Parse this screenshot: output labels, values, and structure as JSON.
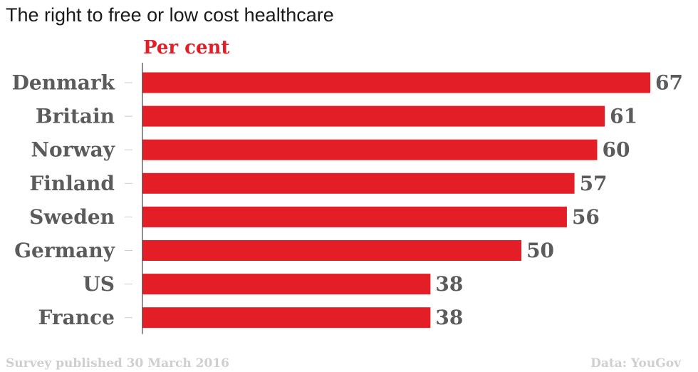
{
  "colors": {
    "bar": "#e31e26",
    "label": "#5b5b5b",
    "axis": "#222222",
    "tick": "#cccccc",
    "footer": "#cfcfcf"
  },
  "chart_data": {
    "type": "bar",
    "orientation": "horizontal",
    "title": "The right to free or low cost healthcare",
    "xlabel": "Per cent",
    "ylabel": "",
    "categories": [
      "Denmark",
      "Britain",
      "Norway",
      "Finland",
      "Sweden",
      "Germany",
      "US",
      "France"
    ],
    "values": [
      67,
      61,
      60,
      57,
      56,
      50,
      38,
      38
    ],
    "xlim": [
      0,
      67
    ],
    "grid": false,
    "data_labels": true
  },
  "footer": {
    "source_note": "Survey published 30 March 2016",
    "credit": "Data: YouGov"
  }
}
